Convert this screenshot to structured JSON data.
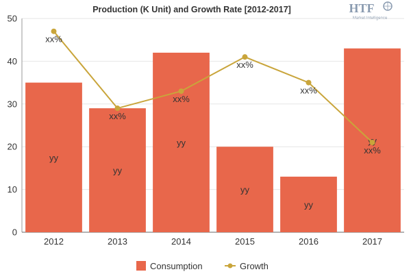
{
  "watermark": {
    "brand": "HTF",
    "tagline": "Market Intelligence"
  },
  "chart_data": {
    "type": "bar",
    "title": "Production (K Unit) and Growth Rate [2012-2017]",
    "xlabel": "",
    "ylabel": "",
    "categories": [
      "2012",
      "2013",
      "2014",
      "2015",
      "2016",
      "2017"
    ],
    "ylim": [
      0,
      50
    ],
    "yticks": [
      0,
      10,
      20,
      30,
      40,
      50
    ],
    "grid": "horizontal",
    "legend_position": "bottom",
    "series": [
      {
        "name": "Consumption",
        "kind": "bar",
        "color": "#e8674b",
        "values": [
          35,
          29,
          42,
          20,
          13,
          43
        ],
        "labels": [
          "yy",
          "yy",
          "yy",
          "yy",
          "yy",
          "yy"
        ]
      },
      {
        "name": "Growth",
        "kind": "line",
        "color": "#c9a53b",
        "values": [
          47,
          29,
          33,
          41,
          35,
          21
        ],
        "labels": [
          "xx%",
          "xx%",
          "xx%",
          "xx%",
          "xx%",
          "xx%"
        ]
      }
    ]
  }
}
